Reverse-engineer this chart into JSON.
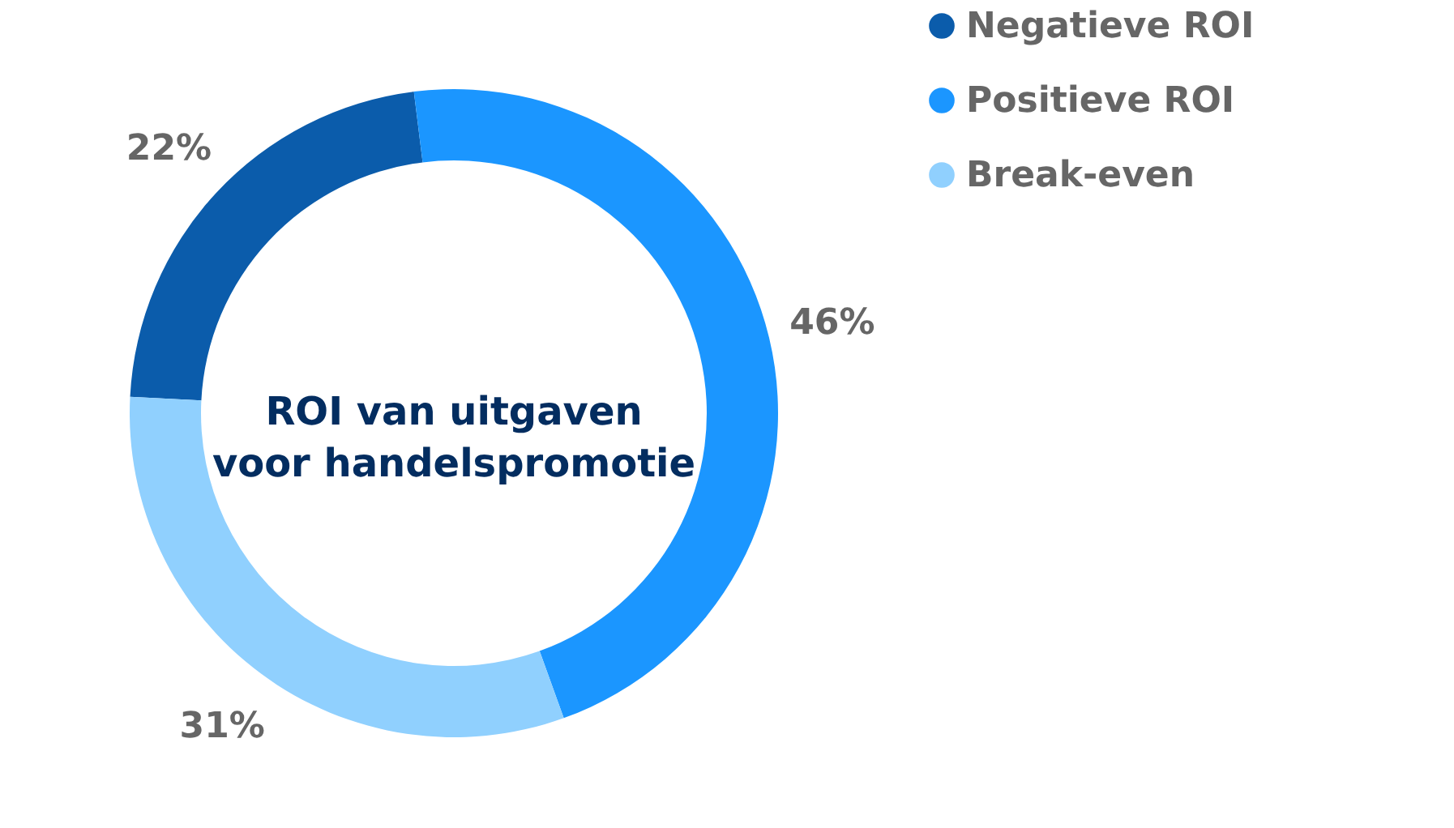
{
  "chart_data": {
    "type": "donut",
    "title": "ROI van uitgaven voor handelspromotie",
    "categories": [
      "Negatieve ROI",
      "Positieve ROI",
      "Break-even"
    ],
    "values": [
      22,
      46,
      31
    ],
    "colors": [
      "#0b5cab",
      "#1b96ff",
      "#90d0fe"
    ],
    "value_labels": [
      "22%",
      "46%",
      "31%"
    ],
    "legend": "right"
  }
}
